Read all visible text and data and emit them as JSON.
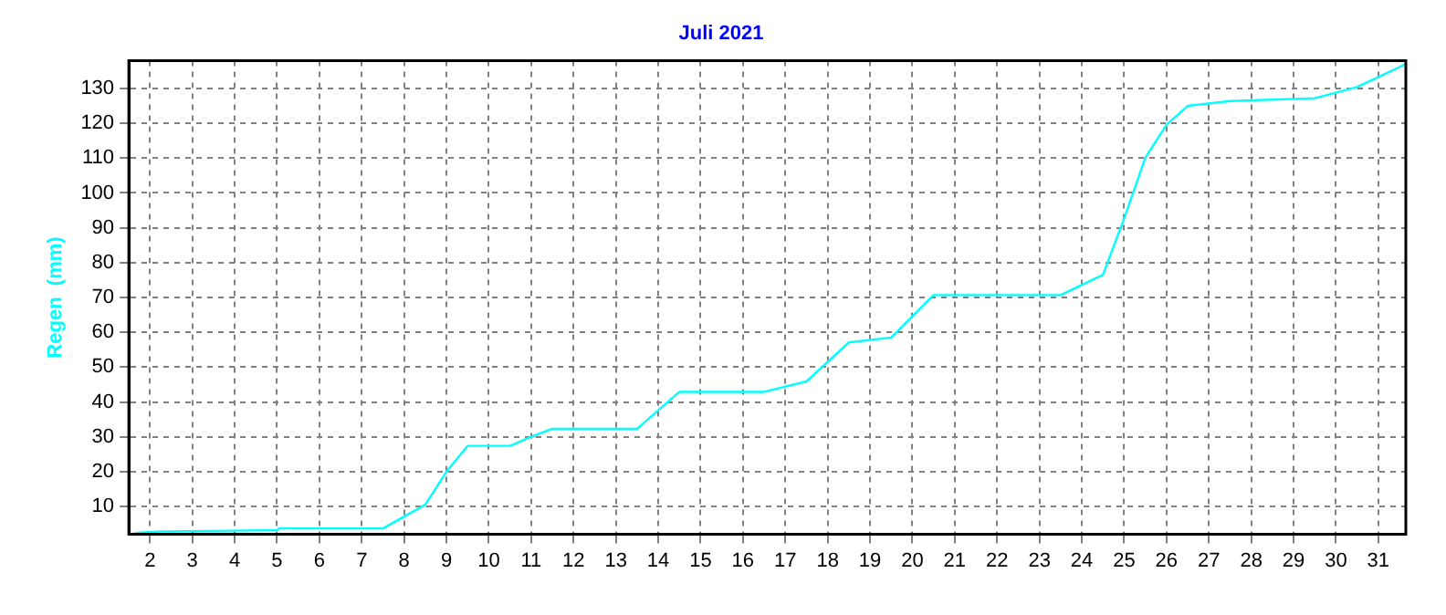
{
  "chart_data": {
    "type": "line",
    "title": "Juli 2021",
    "ylabel": "Regen  (mm)",
    "x": [
      1.5,
      1.75,
      2.25,
      5,
      5.05,
      7.5,
      8.5,
      9,
      9.5,
      10.5,
      11,
      11.5,
      13.5,
      14.5,
      16.5,
      17.5,
      18.5,
      19.5,
      20.5,
      23.5,
      24.5,
      25,
      25.5,
      26,
      26.5,
      27.5,
      29.5,
      30.5,
      31.65
    ],
    "series": [
      {
        "color": "#00ffff",
        "values": [
          2,
          2.5,
          2.8,
          3.2,
          3.7,
          3.7,
          10.5,
          20,
          27.4,
          27.4,
          30,
          32.3,
          32.3,
          42.9,
          42.9,
          45.9,
          57.1,
          58.5,
          70.7,
          70.7,
          76.5,
          92.7,
          110.1,
          119.6,
          125,
          126.4,
          127.2,
          130.4,
          137
        ]
      }
    ],
    "xlim": [
      1.5,
      31.65
    ],
    "xticks": [
      2,
      3,
      4,
      5,
      6,
      7,
      8,
      9,
      10,
      11,
      12,
      13,
      14,
      15,
      16,
      17,
      18,
      19,
      20,
      21,
      22,
      23,
      24,
      25,
      26,
      27,
      28,
      29,
      30,
      31
    ],
    "ylim": [
      2,
      138
    ],
    "yticks": [
      10,
      20,
      30,
      40,
      50,
      60,
      70,
      80,
      90,
      100,
      110,
      120,
      130
    ],
    "grid": true,
    "legend": false,
    "marker": "none",
    "line_style": "solid"
  }
}
